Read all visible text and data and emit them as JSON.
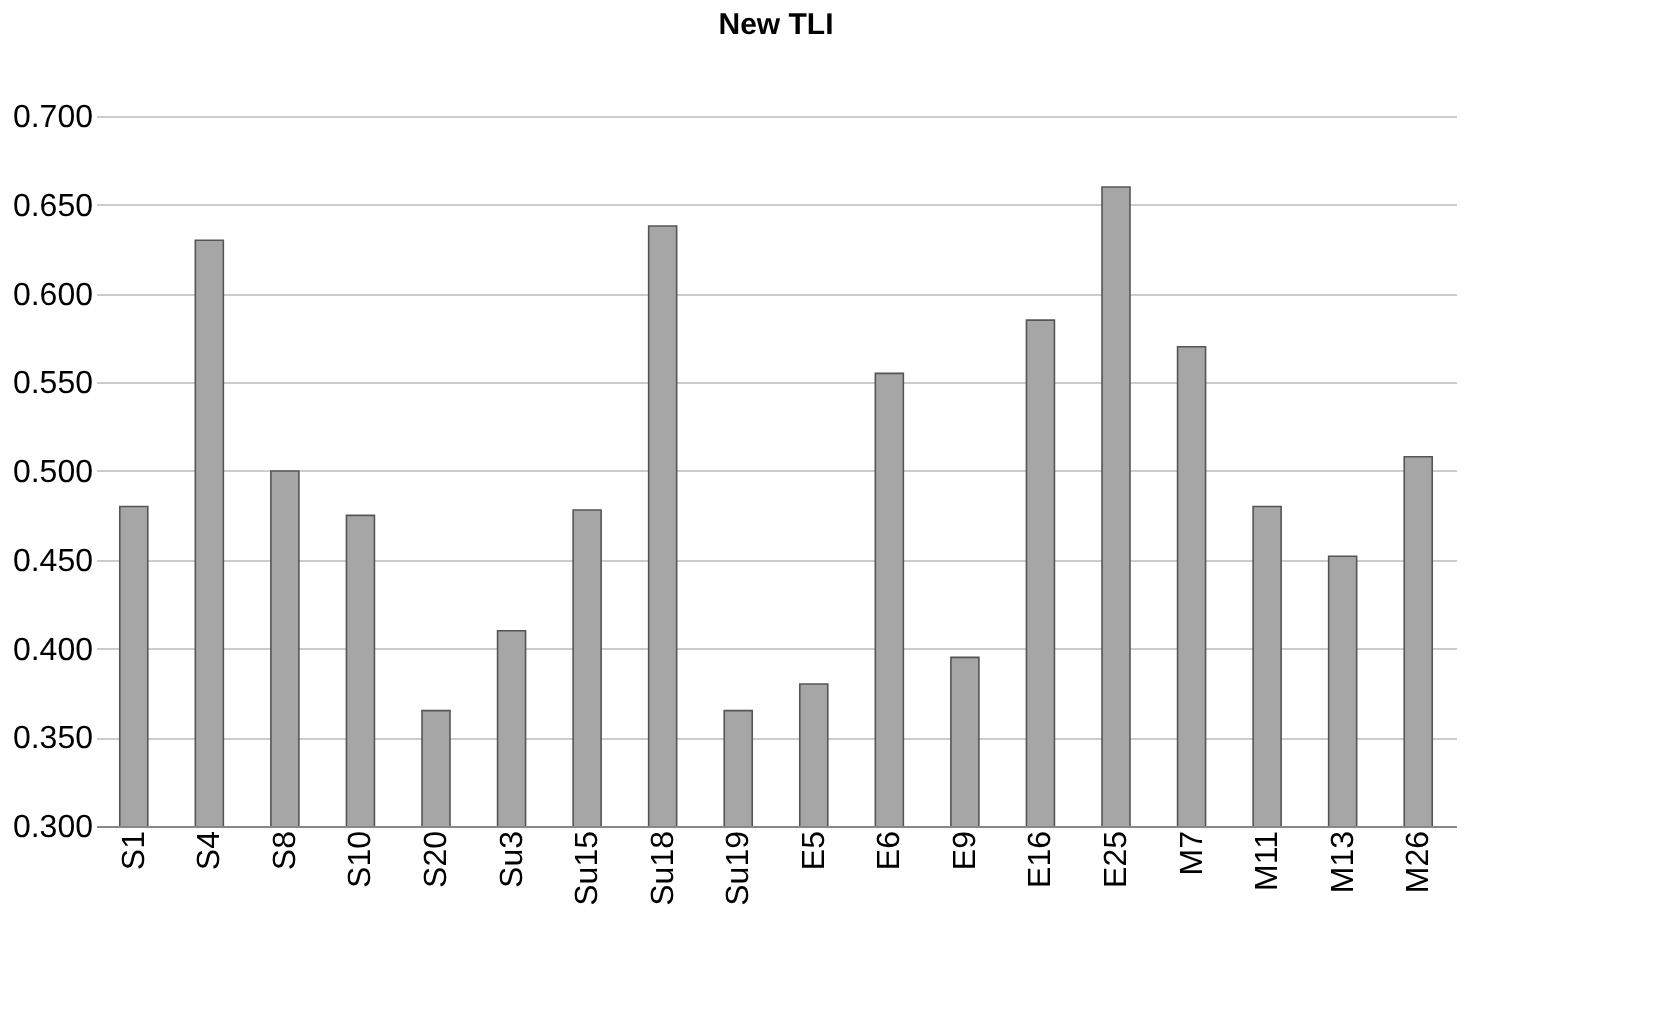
{
  "chart_data": {
    "type": "bar",
    "title": "New TLI",
    "categories": [
      "S1",
      "S4",
      "S8",
      "S10",
      "S20",
      "Su3",
      "Su15",
      "Su18",
      "Su19",
      "E5",
      "E6",
      "E9",
      "E16",
      "E25",
      "M7",
      "M11",
      "M13",
      "M26"
    ],
    "values": [
      0.48,
      0.63,
      0.5,
      0.475,
      0.365,
      0.41,
      0.478,
      0.638,
      0.365,
      0.38,
      0.555,
      0.395,
      0.585,
      0.66,
      0.57,
      0.48,
      0.452,
      0.508
    ],
    "color": "#a6a6a6",
    "ylim": [
      0.3,
      0.7
    ],
    "yticks": [
      {
        "value": 0.3,
        "label": "0.300"
      },
      {
        "value": 0.35,
        "label": "0.350"
      },
      {
        "value": 0.4,
        "label": "0.400"
      },
      {
        "value": 0.45,
        "label": "0.450"
      },
      {
        "value": 0.5,
        "label": "0.500"
      },
      {
        "value": 0.55,
        "label": "0.550"
      },
      {
        "value": 0.6,
        "label": "0.600"
      },
      {
        "value": 0.65,
        "label": "0.650"
      },
      {
        "value": 0.7,
        "label": "0.700"
      }
    ],
    "grid": "y"
  }
}
